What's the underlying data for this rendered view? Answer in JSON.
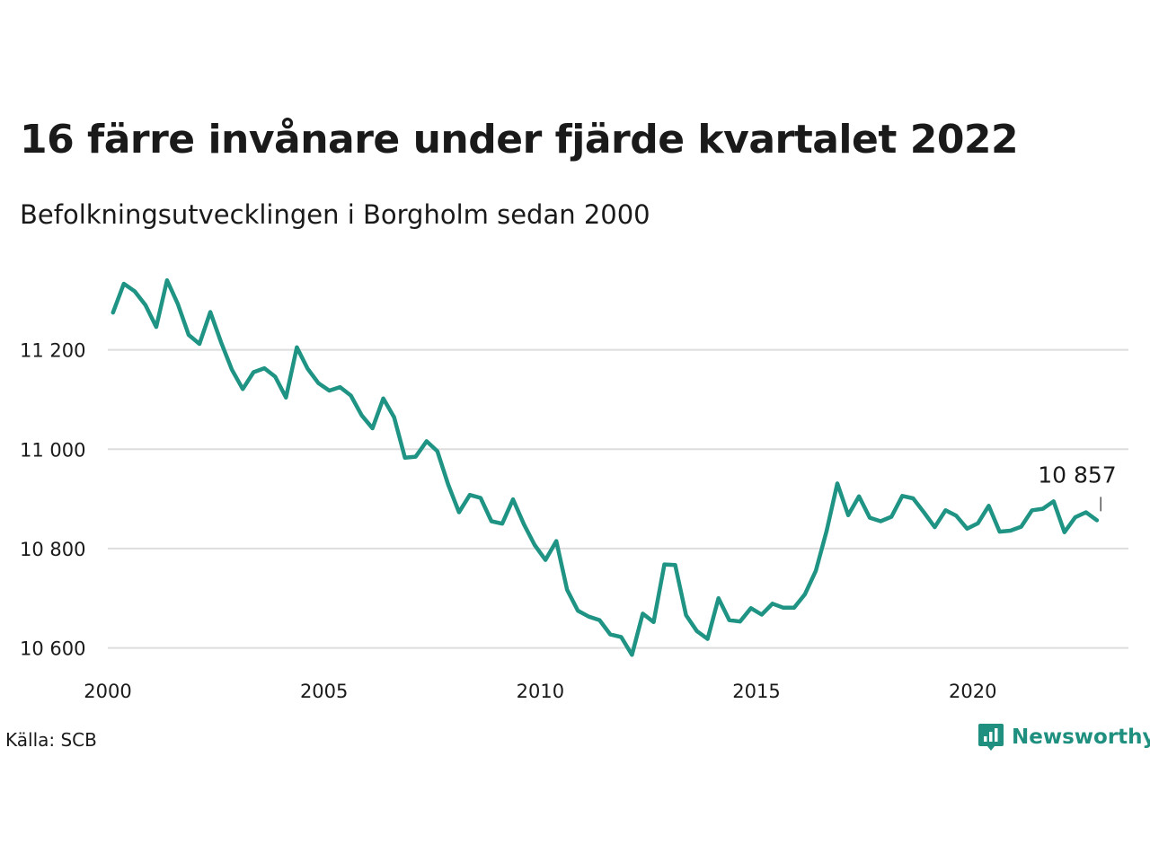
{
  "title": "16 färre invånare under fjärde kvartalet 2022",
  "subtitle": "Befolkningsutvecklingen i Borgholm sedan 2000",
  "source": "Källa: SCB",
  "brand": "Newsworthy",
  "colors": {
    "line": "#1f9484",
    "grid": "#dddddd",
    "text": "#1a1a1a",
    "brand": "#1f8f7f"
  },
  "chart_data": {
    "type": "line",
    "title": "16 färre invånare under fjärde kvartalet 2022",
    "subtitle": "Befolkningsutvecklingen i Borgholm sedan 2000",
    "xlim": [
      2000,
      2023.6
    ],
    "ylim": [
      10545,
      11380
    ],
    "x_ticks": [
      2000,
      2005,
      2010,
      2015,
      2020
    ],
    "x_tick_labels": [
      "2000",
      "2005",
      "2010",
      "2015",
      "2020"
    ],
    "y_ticks": [
      10600,
      10800,
      11000,
      11200
    ],
    "y_tick_labels": [
      "10 600",
      "10 800",
      "11 000",
      "11 200"
    ],
    "grid": "horizontal",
    "annotation": {
      "label": "10 857",
      "x": 2022.96,
      "y": 10857
    },
    "series": [
      {
        "x": [
          2000.12,
          2000.37,
          2000.62,
          2000.87,
          2001.12,
          2001.37,
          2001.62,
          2001.87,
          2002.12,
          2002.37,
          2002.62,
          2002.87,
          2003.12,
          2003.37,
          2003.62,
          2003.87,
          2004.12,
          2004.37,
          2004.62,
          2004.87,
          2005.12,
          2005.37,
          2005.62,
          2005.87,
          2006.12,
          2006.37,
          2006.62,
          2006.87,
          2007.12,
          2007.37,
          2007.62,
          2007.87,
          2008.12,
          2008.37,
          2008.62,
          2008.87,
          2009.12,
          2009.37,
          2009.62,
          2009.87,
          2010.12,
          2010.37,
          2010.62,
          2010.87,
          2011.12,
          2011.37,
          2011.62,
          2011.87,
          2012.12,
          2012.37,
          2012.62,
          2012.87,
          2013.12,
          2013.37,
          2013.62,
          2013.87,
          2014.12,
          2014.37,
          2014.62,
          2014.87,
          2015.12,
          2015.37,
          2015.62,
          2015.87,
          2016.12,
          2016.37,
          2016.62,
          2016.87,
          2017.12,
          2017.37,
          2017.62,
          2017.87,
          2018.12,
          2018.37,
          2018.62,
          2018.87,
          2019.12,
          2019.37,
          2019.62,
          2019.87,
          2020.12,
          2020.37,
          2020.62,
          2020.87,
          2021.12,
          2021.37,
          2021.62,
          2021.87,
          2022.12,
          2022.37,
          2022.62,
          2022.87
        ],
        "values": [
          11275,
          11333,
          11318,
          11290,
          11246,
          11340,
          11292,
          11230,
          11212,
          11276,
          11215,
          11160,
          11121,
          11155,
          11163,
          11146,
          11104,
          11205,
          11162,
          11133,
          11118,
          11125,
          11108,
          11068,
          11042,
          11102,
          11064,
          10983,
          10985,
          11016,
          10996,
          10929,
          10873,
          10908,
          10902,
          10855,
          10850,
          10899,
          10849,
          10807,
          10777,
          10815,
          10717,
          10675,
          10663,
          10656,
          10627,
          10622,
          10586,
          10669,
          10652,
          10768,
          10767,
          10666,
          10634,
          10618,
          10700,
          10656,
          10653,
          10680,
          10667,
          10689,
          10681,
          10681,
          10708,
          10755,
          10835,
          10931,
          10867,
          10905,
          10862,
          10855,
          10864,
          10906,
          10901,
          10873,
          10843,
          10877,
          10866,
          10840,
          10851,
          10886,
          10834,
          10836,
          10844,
          10877,
          10880,
          10895,
          10833,
          10863,
          10873,
          10857
        ]
      }
    ]
  }
}
